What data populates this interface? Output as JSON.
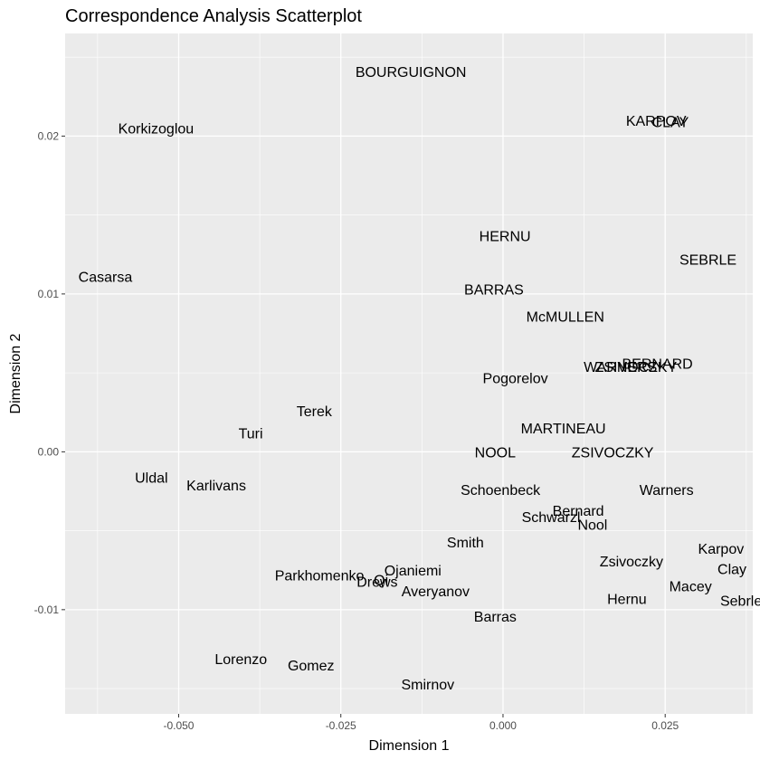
{
  "chart_data": {
    "type": "scatter",
    "title": "Correspondence Analysis Scatterplot",
    "xlabel": "Dimension 1",
    "ylabel": "Dimension 2",
    "xlim": [
      -0.0675,
      0.0385
    ],
    "ylim": [
      -0.0166,
      0.0265
    ],
    "x_ticks": [
      -0.05,
      -0.025,
      0.0,
      0.025
    ],
    "x_tick_labels": [
      "-0.050",
      "-0.025",
      "0.000",
      "0.025"
    ],
    "y_ticks": [
      -0.01,
      0.0,
      0.01,
      0.02
    ],
    "y_tick_labels": [
      "-0.01",
      "0.00",
      "0.01",
      "0.02"
    ],
    "grid": true,
    "legend": "none",
    "colors": {
      "panel": "#ebebeb",
      "grid": "#ffffff",
      "text": "#000000",
      "tick": "#4d4d4d"
    },
    "points": [
      {
        "label": "BOURGUIGNON",
        "x": -0.0142,
        "y": 0.0241
      },
      {
        "label": "Korkizoglou",
        "x": -0.0535,
        "y": 0.0205
      },
      {
        "label": "KARPOV",
        "x": 0.0236,
        "y": 0.021
      },
      {
        "label": "CLAY",
        "x": 0.0258,
        "y": 0.0209
      },
      {
        "label": "HERNU",
        "x": 0.0003,
        "y": 0.0137
      },
      {
        "label": "SEBRLE",
        "x": 0.0316,
        "y": 0.0122
      },
      {
        "label": "Casarsa",
        "x": -0.0613,
        "y": 0.0111
      },
      {
        "label": "BARRAS",
        "x": -0.0014,
        "y": 0.0103
      },
      {
        "label": "McMULLEN",
        "x": 0.0096,
        "y": 0.0086
      },
      {
        "label": "WARNERS",
        "x": 0.0181,
        "y": 0.0054
      },
      {
        "label": "ZSIVOCZKY",
        "x": 0.0205,
        "y": 0.0054
      },
      {
        "label": "BERNARD",
        "x": 0.0238,
        "y": 0.0056
      },
      {
        "label": "Pogorelov",
        "x": 0.0019,
        "y": 0.0047
      },
      {
        "label": "Terek",
        "x": -0.0291,
        "y": 0.0026
      },
      {
        "label": "MARTINEAU",
        "x": 0.0093,
        "y": 0.0015
      },
      {
        "label": "Turi",
        "x": -0.0389,
        "y": 0.0012
      },
      {
        "label": "NOOL",
        "x": -0.0012,
        "y": 0.0
      },
      {
        "label": "ZSIVOCZKY",
        "x": 0.0169,
        "y": 0.0
      },
      {
        "label": "Uldal",
        "x": -0.0542,
        "y": -0.0016
      },
      {
        "label": "Karlivans",
        "x": -0.0442,
        "y": -0.0021
      },
      {
        "label": "Schoenbeck",
        "x": -0.0004,
        "y": -0.0024
      },
      {
        "label": "Warners",
        "x": 0.0252,
        "y": -0.0024
      },
      {
        "label": "Bernard",
        "x": 0.0116,
        "y": -0.0037
      },
      {
        "label": "Schwarzl",
        "x": 0.0074,
        "y": -0.0041
      },
      {
        "label": "Nool",
        "x": 0.0138,
        "y": -0.0046
      },
      {
        "label": "Smith",
        "x": -0.0058,
        "y": -0.0057
      },
      {
        "label": "Karpov",
        "x": 0.0336,
        "y": -0.0061
      },
      {
        "label": "Zsivoczky",
        "x": 0.0198,
        "y": -0.0069
      },
      {
        "label": "Clay",
        "x": 0.0353,
        "y": -0.0074
      },
      {
        "label": "Ojaniemi",
        "x": -0.0139,
        "y": -0.0075
      },
      {
        "label": "Parkhomenko",
        "x": -0.0283,
        "y": -0.0078
      },
      {
        "label": "Qi",
        "x": -0.0188,
        "y": -0.0081
      },
      {
        "label": "Drews",
        "x": -0.0194,
        "y": -0.0082
      },
      {
        "label": "Averyanov",
        "x": -0.0104,
        "y": -0.0088
      },
      {
        "label": "Macey",
        "x": 0.0289,
        "y": -0.0085
      },
      {
        "label": "Hernu",
        "x": 0.0191,
        "y": -0.0093
      },
      {
        "label": "Sebrle",
        "x": 0.0367,
        "y": -0.0094
      },
      {
        "label": "Barras",
        "x": -0.0012,
        "y": -0.0104
      },
      {
        "label": "Lorenzo",
        "x": -0.0404,
        "y": -0.0131
      },
      {
        "label": "Gomez",
        "x": -0.0296,
        "y": -0.0135
      },
      {
        "label": "Smirnov",
        "x": -0.0116,
        "y": -0.0147
      }
    ]
  }
}
